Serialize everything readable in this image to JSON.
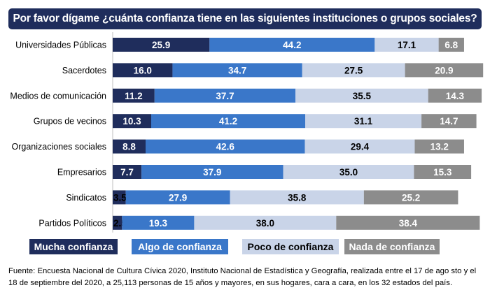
{
  "title": "Por favor dígame ¿cuánta confianza tiene en las siguientes instituciones o grupos sociales?",
  "footnote": "Fuente: Encuesta Nacional de Cultura Cívica 2020, Instituto Nacional de Estadística y Geografía, realizada entre el 17 de ago sto y el 18 de septiembre del 2020, a 25,113 personas de 15 años y mayores, en sus hogares, cara a cara, en los 32 estados del país.",
  "chart_data": {
    "type": "bar",
    "orientation": "horizontal",
    "stacked": true,
    "percent_total": 100,
    "categories": [
      "Universidades Públicas",
      "Sacerdotes",
      "Medios de comunicación",
      "Grupos de vecinos",
      "Organizaciones sociales",
      "Empresarios",
      "Sindicatos",
      "Partidos Políticos"
    ],
    "series": [
      {
        "name": "Mucha confianza",
        "color": "#1f2d5c",
        "label_color": "#ffffff",
        "values": [
          "25.9",
          "16.0",
          "11.2",
          "10.3",
          "8.8",
          "7.7",
          "3.5",
          "2.5"
        ]
      },
      {
        "name": "Algo de confianza",
        "color": "#3a77c9",
        "label_color": "#ffffff",
        "values": [
          "44.2",
          "34.7",
          "37.7",
          "41.2",
          "42.6",
          "37.9",
          "27.9",
          "19.3"
        ]
      },
      {
        "name": "Poco de confianza",
        "color": "#c9d4e8",
        "label_color": "#000000",
        "values": [
          "17.1",
          "27.5",
          "35.5",
          "31.1",
          "29.4",
          "35.0",
          "35.8",
          "38.0"
        ]
      },
      {
        "name": "Nada de confianza",
        "color": "#8c8c8c",
        "label_color": "#ffffff",
        "values": [
          "6.8",
          "20.9",
          "14.3",
          "14.7",
          "13.2",
          "15.3",
          "25.2",
          "38.4"
        ]
      }
    ],
    "legend_position": "bottom"
  }
}
